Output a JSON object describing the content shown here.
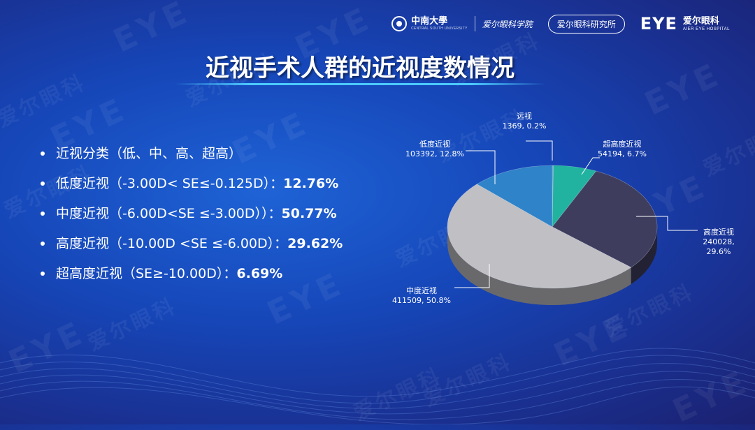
{
  "header": {
    "university_cn": "中南大學",
    "university_en": "CENTRAL SOUTH UNIVERSITY",
    "department": "爱尔眼科学院",
    "institute": "爱尔眼科研究所",
    "brand_logo": "EYE",
    "brand_cn": "爱尔眼科",
    "brand_en": "AIER EYE HOSPITAL"
  },
  "title": "近视手术人群的近视度数情况",
  "bullets": [
    {
      "text": "近视分类（低、中、高、超高）",
      "pct": ""
    },
    {
      "text": "低度近视（-3.00D< SE≤-0.125D）：",
      "pct": "12.76%"
    },
    {
      "text": "中度近视（-6.00D<SE ≤-3.00D））：",
      "pct": "50.77%"
    },
    {
      "text": "高度近视（-10.00D <SE ≤-6.00D）：",
      "pct": "29.62%"
    },
    {
      "text": "超高度近视（SE≥-10.00D）：",
      "pct": "6.69%"
    }
  ],
  "colors": {
    "accent_underline": "#4cc9ff",
    "slice_remote": "#5b9bd5",
    "slice_super_high": "#21b3a0",
    "slice_high": "#3f3d5e",
    "slice_medium": "#bfbfc4",
    "slice_low": "#2f83c8"
  },
  "chart_data": {
    "type": "pie",
    "title": "",
    "slices": [
      {
        "name": "远视",
        "value": 1369,
        "percent_label": "0.2%",
        "color": "#5b9bd5",
        "label_line1": "远视",
        "label_line2": "1369, 0.2%"
      },
      {
        "name": "超高度近视",
        "value": 54194,
        "percent_label": "6.7%",
        "color": "#21b3a0",
        "label_line1": "超高度近视",
        "label_line2": "54194, 6.7%"
      },
      {
        "name": "高度近视",
        "value": 240028,
        "percent_label": "29.6%",
        "color": "#3f3d5e",
        "label_line1": "高度近视",
        "label_line2": "240028,",
        "label_line3": "29.6%"
      },
      {
        "name": "中度近视",
        "value": 411509,
        "percent_label": "50.8%",
        "color": "#bfbfc4",
        "label_line1": "中度近视",
        "label_line2": "411509, 50.8%"
      },
      {
        "name": "低度近视",
        "value": 103392,
        "percent_label": "12.8%",
        "color": "#2f83c8",
        "label_line1": "低度近视",
        "label_line2": "103392, 12.8%"
      }
    ],
    "style": "3d-tilted"
  }
}
